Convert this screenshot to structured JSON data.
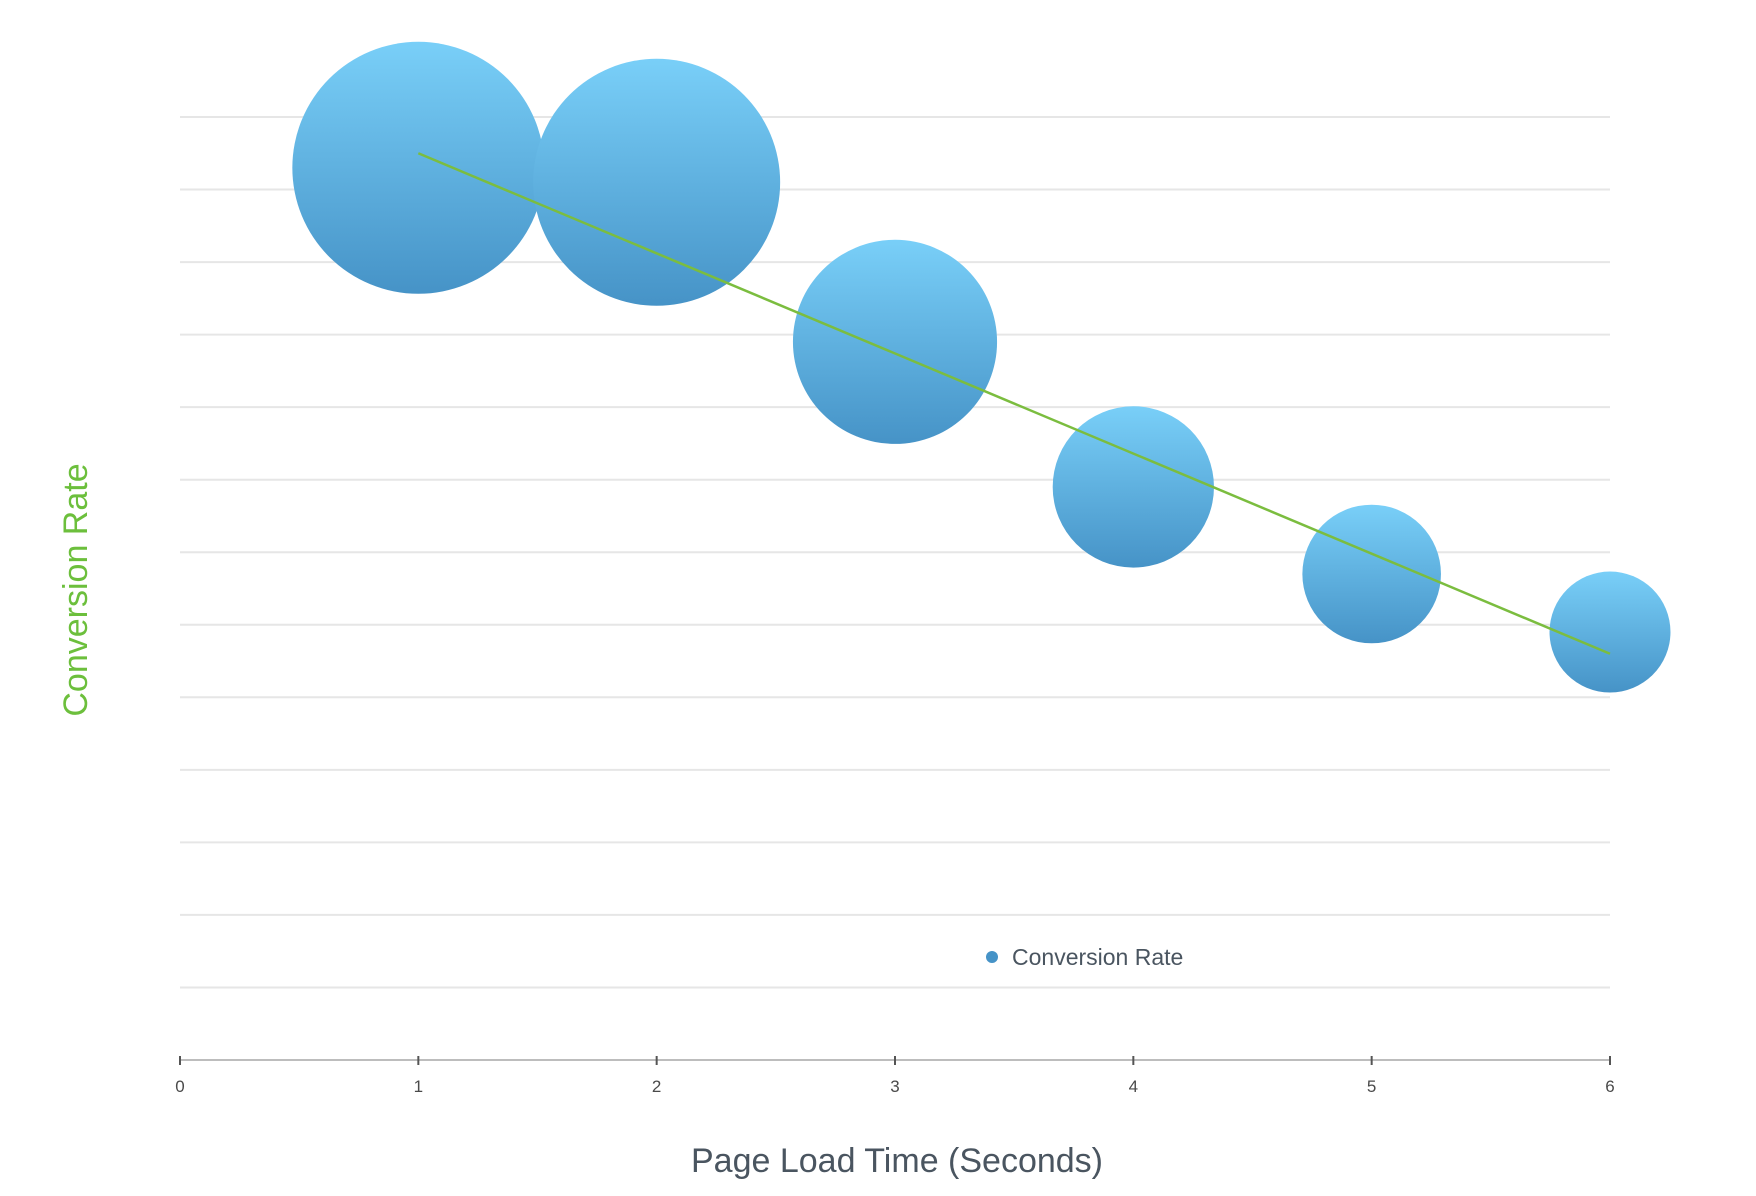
{
  "chart_data": {
    "type": "scatter",
    "subtype": "bubble",
    "xlabel": "Page Load Time (Seconds)",
    "ylabel": "Conversion Rate",
    "x_ticks": [
      "0",
      "1",
      "2",
      "3",
      "4",
      "5",
      "6"
    ],
    "xlim": [
      0,
      6
    ],
    "ylim": [
      0,
      13
    ],
    "grid": true,
    "legend": {
      "position": "bottom-center",
      "entries": [
        "Conversion Rate"
      ]
    },
    "series": [
      {
        "name": "Conversion Rate",
        "x": [
          1,
          2,
          3,
          4,
          5,
          6
        ],
        "y": [
          12.3,
          12.1,
          9.9,
          7.9,
          6.7,
          5.9
        ],
        "size": [
          1.0,
          0.98,
          0.81,
          0.64,
          0.55,
          0.48
        ]
      }
    ],
    "trendline": {
      "x": [
        1,
        6
      ],
      "y": [
        12.5,
        5.6
      ]
    },
    "colors": {
      "bubble_top": "#79cff8",
      "bubble_bottom": "#4693c7",
      "trendline": "#7bbd3f",
      "ylabel": "#6cbf3c",
      "grid": "#e6e6e6",
      "axis": "#bdbdbd"
    }
  }
}
